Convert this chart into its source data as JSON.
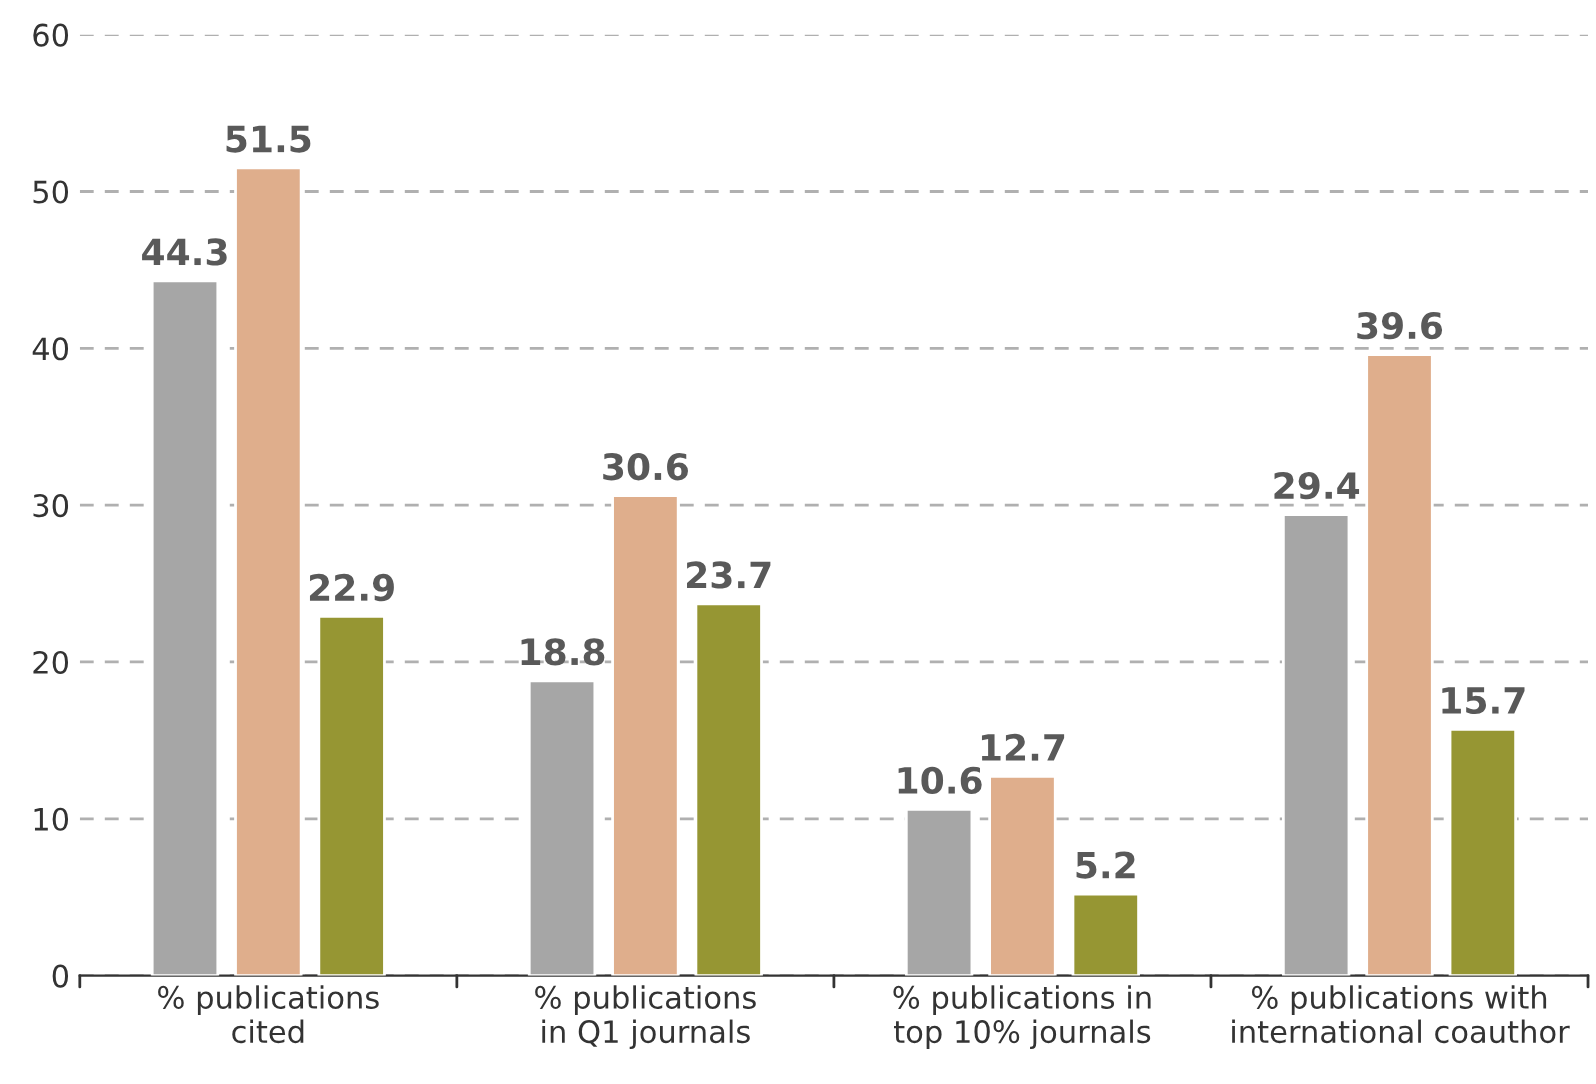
{
  "chart_data": {
    "type": "bar",
    "categories": [
      "% publications\ncited",
      "% publications\nin Q1 journals",
      "% publications in\ntop 10% journals",
      "% publications with\ninternational coauthor"
    ],
    "series": [
      {
        "color": "#a6a6a6",
        "values": [
          44.3,
          18.8,
          10.6,
          29.4
        ]
      },
      {
        "color": "#dfae8c",
        "values": [
          51.5,
          30.6,
          12.7,
          39.6
        ]
      },
      {
        "color": "#969633",
        "values": [
          22.9,
          23.7,
          5.2,
          15.7
        ]
      }
    ],
    "ylim": [
      0,
      60
    ],
    "yticks": [
      0,
      10,
      20,
      30,
      40,
      50,
      60
    ],
    "grid": "y",
    "data_labels": true
  }
}
